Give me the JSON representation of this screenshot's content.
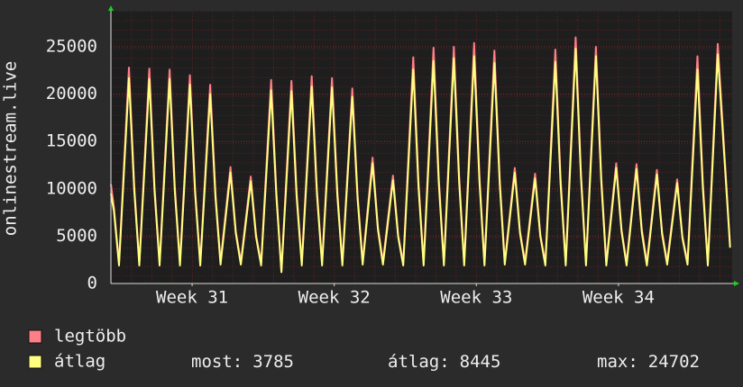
{
  "chart_data": {
    "type": "line",
    "y_label": "onlinestream.live",
    "xlim": [
      0,
      30.6
    ],
    "xticks": [
      {
        "value": 4.0,
        "label": "Week 31"
      },
      {
        "value": 11.0,
        "label": "Week 32"
      },
      {
        "value": 18.0,
        "label": "Week 33"
      },
      {
        "value": 25.0,
        "label": "Week 34"
      }
    ],
    "ylim": [
      0,
      28800
    ],
    "yticks": [
      0,
      5000,
      10000,
      15000,
      20000,
      25000
    ],
    "grid": true,
    "x": [
      0,
      0.15,
      0.4,
      0.89,
      1.15,
      1.4,
      1.89,
      2.15,
      2.4,
      2.89,
      3.15,
      3.4,
      3.89,
      4.15,
      4.4,
      4.89,
      5.15,
      5.4,
      5.89,
      6.15,
      6.4,
      6.89,
      7.15,
      7.4,
      7.89,
      8.15,
      8.4,
      8.89,
      9.15,
      9.4,
      9.89,
      10.15,
      10.4,
      10.89,
      11.15,
      11.4,
      11.89,
      12.15,
      12.4,
      12.89,
      13.15,
      13.4,
      13.89,
      14.15,
      14.4,
      14.89,
      15.15,
      15.4,
      15.89,
      16.15,
      16.4,
      16.89,
      17.15,
      17.4,
      17.89,
      18.15,
      18.4,
      18.89,
      19.15,
      19.4,
      19.89,
      20.15,
      20.4,
      20.89,
      21.15,
      21.4,
      21.89,
      22.15,
      22.4,
      22.89,
      23.15,
      23.4,
      23.89,
      24.15,
      24.4,
      24.89,
      25.15,
      25.4,
      25.89,
      26.15,
      26.4,
      26.89,
      27.15,
      27.4,
      27.89,
      28.15,
      28.4,
      28.89,
      29.15,
      29.4,
      29.89,
      30.5
    ],
    "series": [
      {
        "name": "legtöbb",
        "color": "#ff7f86",
        "values": [
          10500,
          8000,
          2200,
          22800,
          10300,
          2200,
          22700,
          10200,
          2200,
          22600,
          10200,
          2200,
          22000,
          9900,
          2200,
          21000,
          9500,
          2300,
          12300,
          5500,
          2300,
          11300,
          5100,
          2200,
          21500,
          9700,
          1300,
          21400,
          9600,
          2200,
          21900,
          9900,
          2200,
          21700,
          9800,
          2200,
          20600,
          9300,
          2300,
          13300,
          6000,
          2300,
          11400,
          5100,
          2200,
          23900,
          10800,
          2200,
          24900,
          11200,
          2200,
          25000,
          11300,
          2200,
          25400,
          11400,
          2200,
          24600,
          11100,
          2300,
          12200,
          5500,
          2300,
          11600,
          5200,
          2200,
          24700,
          11100,
          2200,
          26000,
          11700,
          2200,
          25000,
          11300,
          2200,
          12700,
          5700,
          2200,
          12600,
          5700,
          2200,
          12000,
          5400,
          2300,
          11000,
          5000,
          2300,
          24000,
          10800,
          2200,
          25300,
          4000
        ]
      },
      {
        "name": "átlag",
        "color": "#ffff80",
        "values": [
          9500,
          7600,
          1900,
          21700,
          9800,
          1900,
          21600,
          9700,
          1900,
          21600,
          9700,
          1900,
          21000,
          9500,
          1900,
          20000,
          9000,
          2000,
          11700,
          5300,
          2000,
          10800,
          4900,
          1900,
          20400,
          9200,
          1200,
          20300,
          9100,
          1900,
          20800,
          9400,
          1900,
          20700,
          9300,
          1900,
          19700,
          8900,
          2000,
          12700,
          5700,
          2000,
          10900,
          4900,
          1900,
          22600,
          10200,
          1900,
          23500,
          10600,
          1900,
          23800,
          10700,
          1900,
          24000,
          10800,
          1900,
          23300,
          10500,
          2000,
          11700,
          5300,
          2000,
          11100,
          5000,
          1900,
          23400,
          10500,
          1900,
          24800,
          11200,
          1900,
          24000,
          10800,
          1900,
          12200,
          5500,
          1900,
          12100,
          5400,
          1900,
          11500,
          5200,
          2000,
          10600,
          4800,
          2000,
          22600,
          10200,
          1900,
          24200,
          3785
        ]
      }
    ],
    "stats": [
      {
        "label": "most:",
        "value": 3785
      },
      {
        "label": "átlag:",
        "value": 8445
      },
      {
        "label": "max:",
        "value": 24702
      }
    ]
  }
}
